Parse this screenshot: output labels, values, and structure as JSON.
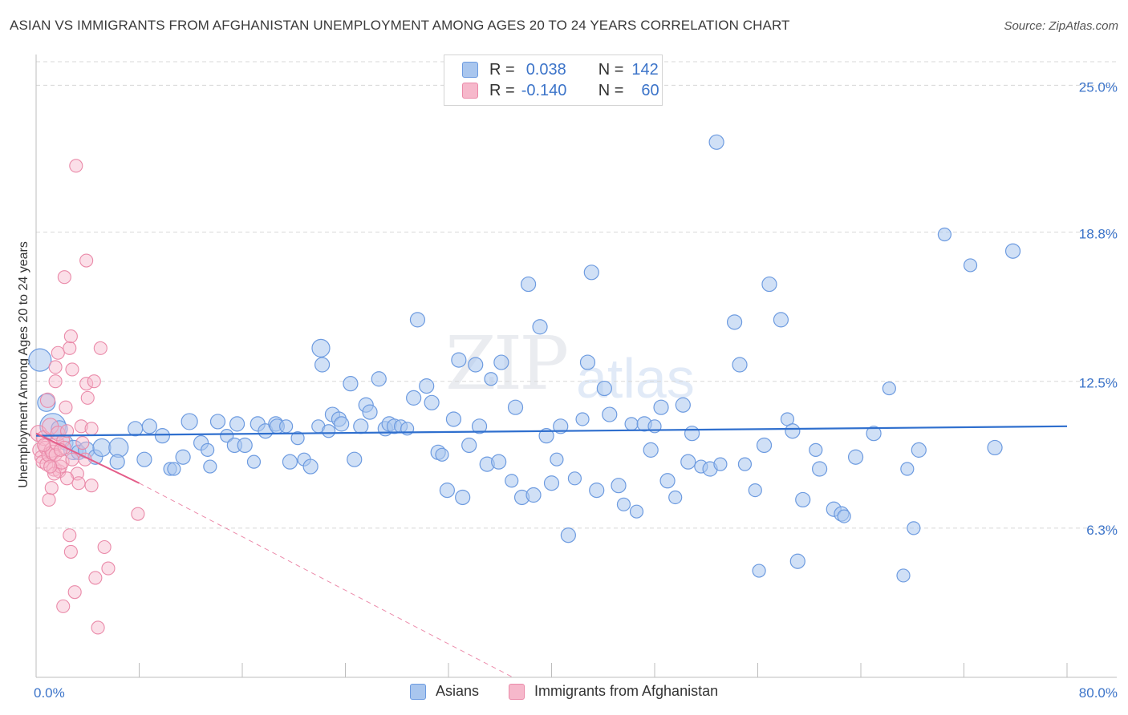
{
  "header": {
    "title": "ASIAN VS IMMIGRANTS FROM AFGHANISTAN UNEMPLOYMENT AMONG AGES 20 TO 24 YEARS CORRELATION CHART",
    "source": "Source: ZipAtlas.com"
  },
  "watermark": {
    "zip": "ZIP",
    "atlas": "atlas"
  },
  "legend": {
    "asians": {
      "r_label": "R =",
      "r_value": "0.038",
      "n_label": "N =",
      "n_value": "142"
    },
    "afghan": {
      "r_label": "R =",
      "r_value": "-0.140",
      "n_label": "N =",
      "n_value": "60"
    }
  },
  "bottom_legend": {
    "asians": "Asians",
    "afghan": "Immigrants from Afghanistan"
  },
  "colors": {
    "asian_fill": "#a9c6ee",
    "asian_stroke": "#6d9be0",
    "asian_line": "#2f6fce",
    "afghan_fill": "#f6b8cb",
    "afghan_stroke": "#ea8aa9",
    "afghan_line": "#e45d89",
    "grid": "#d8d8d8",
    "tick_label": "#3c74c9"
  },
  "chart_data": {
    "type": "scatter",
    "title": "ASIAN VS IMMIGRANTS FROM AFGHANISTAN UNEMPLOYMENT AMONG AGES 20 TO 24 YEARS CORRELATION CHART",
    "xlabel": "",
    "ylabel": "Unemployment Among Ages 20 to 24 years",
    "xlim": [
      0,
      80
    ],
    "ylim": [
      0,
      26.3
    ],
    "x_tick_labels": [
      "0.0%",
      "80.0%"
    ],
    "y_ticks": [
      6.3,
      12.5,
      18.8,
      25.0
    ],
    "y_tick_labels": [
      "6.3%",
      "12.5%",
      "18.8%",
      "25.0%"
    ],
    "series": [
      {
        "name": "Asians",
        "trend": {
          "x": [
            0,
            80
          ],
          "y": [
            10.2,
            10.6
          ]
        },
        "points": [
          [
            0.3,
            13.4,
            14
          ],
          [
            0.8,
            11.6,
            11
          ],
          [
            1.3,
            10.6,
            16
          ],
          [
            1.8,
            10.5,
            10
          ],
          [
            2.3,
            9.9,
            9
          ],
          [
            2.9,
            9.6,
            12
          ],
          [
            3.3,
            9.5,
            9
          ],
          [
            3.9,
            9.6,
            10
          ],
          [
            4.6,
            9.3,
            9
          ],
          [
            5.1,
            9.7,
            11
          ],
          [
            6.4,
            9.7,
            12
          ],
          [
            6.3,
            9.1,
            9
          ],
          [
            7.7,
            10.5,
            9
          ],
          [
            8.4,
            9.2,
            9
          ],
          [
            8.8,
            10.6,
            9
          ],
          [
            9.8,
            10.2,
            9
          ],
          [
            10.4,
            8.8,
            8
          ],
          [
            10.7,
            8.8,
            8
          ],
          [
            11.4,
            9.3,
            9
          ],
          [
            11.9,
            10.8,
            10
          ],
          [
            12.8,
            9.9,
            9
          ],
          [
            13.3,
            9.6,
            8
          ],
          [
            13.5,
            8.9,
            8
          ],
          [
            14.1,
            10.8,
            9
          ],
          [
            14.8,
            10.2,
            8
          ],
          [
            15.4,
            9.8,
            9
          ],
          [
            15.6,
            10.7,
            9
          ],
          [
            16.2,
            9.8,
            9
          ],
          [
            16.9,
            9.1,
            8
          ],
          [
            17.2,
            10.7,
            9
          ],
          [
            17.8,
            10.4,
            9
          ],
          [
            18.6,
            10.7,
            9
          ],
          [
            18.7,
            10.6,
            9
          ],
          [
            19.4,
            10.6,
            8
          ],
          [
            19.7,
            9.1,
            9
          ],
          [
            20.3,
            10.1,
            8
          ],
          [
            20.8,
            9.2,
            8
          ],
          [
            21.3,
            8.9,
            9
          ],
          [
            21.9,
            10.6,
            8
          ],
          [
            22.1,
            13.9,
            11
          ],
          [
            22.2,
            13.2,
            9
          ],
          [
            22.7,
            10.4,
            8
          ],
          [
            23.0,
            11.1,
            9
          ],
          [
            23.5,
            10.9,
            9
          ],
          [
            23.7,
            10.7,
            9
          ],
          [
            24.4,
            12.4,
            9
          ],
          [
            24.7,
            9.2,
            9
          ],
          [
            25.2,
            10.6,
            9
          ],
          [
            25.6,
            11.5,
            9
          ],
          [
            25.9,
            11.2,
            9
          ],
          [
            26.6,
            12.6,
            9
          ],
          [
            27.1,
            10.5,
            9
          ],
          [
            27.4,
            10.7,
            9
          ],
          [
            27.8,
            10.6,
            9
          ],
          [
            28.3,
            10.6,
            8
          ],
          [
            28.8,
            10.5,
            8
          ],
          [
            29.3,
            11.8,
            9
          ],
          [
            29.6,
            15.1,
            9
          ],
          [
            30.3,
            12.3,
            9
          ],
          [
            30.7,
            11.6,
            9
          ],
          [
            31.2,
            9.5,
            9
          ],
          [
            31.5,
            9.4,
            8
          ],
          [
            31.9,
            7.9,
            9
          ],
          [
            32.4,
            10.9,
            9
          ],
          [
            32.8,
            13.4,
            9
          ],
          [
            33.1,
            7.6,
            9
          ],
          [
            33.6,
            9.8,
            9
          ],
          [
            34.1,
            13.2,
            9
          ],
          [
            34.4,
            10.6,
            9
          ],
          [
            35.0,
            9.0,
            9
          ],
          [
            35.3,
            12.6,
            8
          ],
          [
            35.9,
            9.1,
            9
          ],
          [
            36.1,
            13.3,
            9
          ],
          [
            36.9,
            8.3,
            8
          ],
          [
            37.2,
            11.4,
            9
          ],
          [
            37.7,
            7.6,
            9
          ],
          [
            38.2,
            16.6,
            9
          ],
          [
            38.6,
            7.7,
            9
          ],
          [
            39.1,
            14.8,
            9
          ],
          [
            39.6,
            10.2,
            9
          ],
          [
            40.0,
            8.2,
            9
          ],
          [
            40.4,
            9.2,
            8
          ],
          [
            40.7,
            10.6,
            9
          ],
          [
            41.3,
            6.0,
            9
          ],
          [
            41.8,
            8.4,
            8
          ],
          [
            42.4,
            10.9,
            8
          ],
          [
            42.8,
            13.3,
            9
          ],
          [
            43.1,
            17.1,
            9
          ],
          [
            43.5,
            7.9,
            9
          ],
          [
            44.1,
            12.2,
            9
          ],
          [
            44.5,
            11.1,
            9
          ],
          [
            45.2,
            8.1,
            9
          ],
          [
            45.6,
            7.3,
            8
          ],
          [
            46.2,
            10.7,
            8
          ],
          [
            46.6,
            7.0,
            8
          ],
          [
            47.2,
            10.7,
            9
          ],
          [
            47.7,
            9.6,
            9
          ],
          [
            48.0,
            10.6,
            8
          ],
          [
            48.5,
            11.4,
            9
          ],
          [
            49.0,
            8.3,
            9
          ],
          [
            49.6,
            7.6,
            8
          ],
          [
            50.2,
            11.5,
            9
          ],
          [
            50.6,
            9.1,
            9
          ],
          [
            50.9,
            10.3,
            9
          ],
          [
            51.6,
            8.9,
            8
          ],
          [
            52.3,
            8.8,
            9
          ],
          [
            52.8,
            22.6,
            9
          ],
          [
            53.1,
            9.0,
            8
          ],
          [
            54.2,
            15.0,
            9
          ],
          [
            54.6,
            13.2,
            9
          ],
          [
            55.0,
            9.0,
            8
          ],
          [
            55.8,
            7.9,
            8
          ],
          [
            56.1,
            4.5,
            8
          ],
          [
            56.5,
            9.8,
            9
          ],
          [
            56.9,
            16.6,
            9
          ],
          [
            57.8,
            15.1,
            9
          ],
          [
            58.3,
            10.9,
            8
          ],
          [
            58.7,
            10.4,
            9
          ],
          [
            59.1,
            4.9,
            9
          ],
          [
            59.5,
            7.5,
            9
          ],
          [
            60.5,
            9.6,
            8
          ],
          [
            60.8,
            8.8,
            9
          ],
          [
            61.9,
            7.1,
            9
          ],
          [
            62.5,
            6.9,
            9
          ],
          [
            62.7,
            6.8,
            8
          ],
          [
            63.6,
            9.3,
            9
          ],
          [
            65.0,
            10.3,
            9
          ],
          [
            66.2,
            12.2,
            8
          ],
          [
            67.3,
            4.3,
            8
          ],
          [
            67.6,
            8.8,
            8
          ],
          [
            68.1,
            6.3,
            8
          ],
          [
            68.5,
            9.6,
            9
          ],
          [
            70.5,
            18.7,
            8
          ],
          [
            72.5,
            17.4,
            8
          ],
          [
            74.4,
            9.7,
            9
          ],
          [
            75.8,
            18.0,
            9
          ]
        ]
      },
      {
        "name": "Immigrants from Afghanistan",
        "trend": {
          "x": [
            0,
            8
          ],
          "y": [
            10.3,
            8.2
          ]
        },
        "trend_extension": {
          "x": [
            8,
            37
          ],
          "y": [
            8.2,
            0
          ]
        },
        "points": [
          [
            0.2,
            10.3,
            10
          ],
          [
            0.3,
            9.6,
            9
          ],
          [
            0.4,
            9.3,
            8
          ],
          [
            0.5,
            9.1,
            8
          ],
          [
            0.6,
            10.1,
            9
          ],
          [
            0.7,
            9.7,
            8
          ],
          [
            0.8,
            9.0,
            8
          ],
          [
            0.9,
            11.7,
            9
          ],
          [
            1.0,
            9.4,
            9
          ],
          [
            1.1,
            10.6,
            10
          ],
          [
            1.2,
            9.6,
            9
          ],
          [
            1.3,
            9.5,
            9
          ],
          [
            1.4,
            8.8,
            9
          ],
          [
            1.5,
            9.4,
            8
          ],
          [
            1.6,
            9.9,
            9
          ],
          [
            1.7,
            10.3,
            9
          ],
          [
            1.8,
            8.7,
            8
          ],
          [
            1.9,
            8.9,
            8
          ],
          [
            2.0,
            9.1,
            9
          ],
          [
            2.1,
            10.0,
            8
          ],
          [
            2.2,
            9.7,
            8
          ],
          [
            2.3,
            11.4,
            8
          ],
          [
            2.4,
            10.4,
            8
          ],
          [
            1.0,
            7.5,
            8
          ],
          [
            1.2,
            8.0,
            8
          ],
          [
            1.4,
            8.6,
            8
          ],
          [
            1.5,
            12.5,
            8
          ],
          [
            1.5,
            13.1,
            8
          ],
          [
            1.7,
            13.7,
            8
          ],
          [
            2.2,
            16.9,
            8
          ],
          [
            2.6,
            13.9,
            8
          ],
          [
            2.7,
            14.4,
            8
          ],
          [
            2.8,
            13.0,
            8
          ],
          [
            2.6,
            6.0,
            8
          ],
          [
            2.7,
            5.3,
            8
          ],
          [
            3.1,
            21.6,
            8
          ],
          [
            3.2,
            8.6,
            8
          ],
          [
            3.3,
            8.2,
            8
          ],
          [
            3.5,
            10.6,
            8
          ],
          [
            3.6,
            9.9,
            8
          ],
          [
            3.8,
            9.2,
            8
          ],
          [
            3.9,
            12.4,
            8
          ],
          [
            4.0,
            11.8,
            8
          ],
          [
            4.3,
            8.1,
            8
          ],
          [
            3.9,
            17.6,
            8
          ],
          [
            4.3,
            10.5,
            8
          ],
          [
            4.5,
            12.5,
            8
          ],
          [
            5.0,
            13.9,
            8
          ],
          [
            5.3,
            5.5,
            8
          ],
          [
            5.6,
            4.6,
            8
          ],
          [
            2.1,
            3.0,
            8
          ],
          [
            3.0,
            3.6,
            8
          ],
          [
            4.6,
            4.2,
            8
          ],
          [
            4.8,
            2.1,
            8
          ],
          [
            7.9,
            6.9,
            8
          ],
          [
            2.4,
            8.4,
            8
          ],
          [
            1.9,
            9.6,
            8
          ],
          [
            2.8,
            9.2,
            8
          ],
          [
            0.6,
            9.8,
            8
          ],
          [
            1.1,
            8.9,
            8
          ]
        ]
      }
    ]
  }
}
